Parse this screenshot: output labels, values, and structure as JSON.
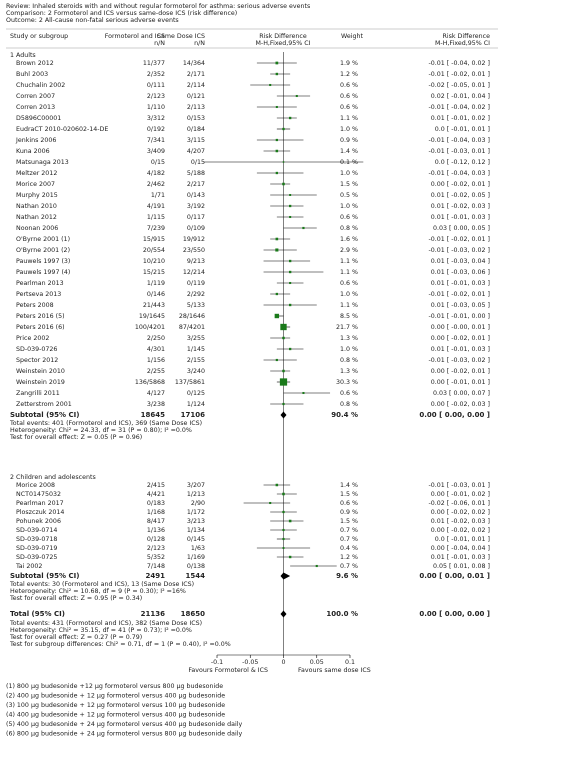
{
  "header": {
    "review": "Review:   Inhaled steroids with and without regular formoterol for asthma: serious adverse events",
    "comparison": "Comparison:   2 Formoterol and ICS versus same-dose ICS (risk difference)",
    "outcome": "Outcome:   2 All-cause non-fatal serious adverse events"
  },
  "columns": {
    "study": "Study or subgroup",
    "group1": "Formoterol and ICS",
    "group1_unit": "n/N",
    "group2": "Same Dose ICS",
    "group2_unit": "n/N",
    "plot": "Risk Difference",
    "plot_method": "M-H,Fixed,95% CI",
    "weight": "Weight",
    "effect": "Risk Difference",
    "effect_method": "M-H,Fixed,95% CI"
  },
  "chart_data": {
    "type": "forest",
    "xlim": [
      -0.1,
      0.1
    ],
    "xticks": [
      -0.1,
      -0.05,
      0,
      0.05,
      0.1
    ],
    "left_label": "Favours Formoterol & ICS",
    "right_label": "Favours same dose ICS",
    "color": "#1a7a1a",
    "groups": [
      {
        "title": "1 Adults",
        "rows": [
          {
            "study": "Brown 2012",
            "ft": "11/377",
            "sd": "14/364",
            "weight": 1.9,
            "weight_label": "1.9 %",
            "est": -0.01,
            "lo": -0.04,
            "hi": 0.02,
            "ci_label": "-0.01 [ -0.04, 0.02 ]"
          },
          {
            "study": "Buhl 2003",
            "ft": "2/352",
            "sd": "2/171",
            "weight": 1.2,
            "weight_label": "1.2 %",
            "est": -0.01,
            "lo": -0.02,
            "hi": 0.01,
            "ci_label": "-0.01 [ -0.02, 0.01 ]"
          },
          {
            "study": "Chuchalin 2002",
            "ft": "0/111",
            "sd": "2/114",
            "weight": 0.6,
            "weight_label": "0.6 %",
            "est": -0.02,
            "lo": -0.05,
            "hi": 0.01,
            "ci_label": "-0.02 [ -0.05, 0.01 ]"
          },
          {
            "study": "Corren 2007",
            "ft": "2/123",
            "sd": "0/121",
            "weight": 0.6,
            "weight_label": "0.6 %",
            "est": 0.02,
            "lo": -0.01,
            "hi": 0.04,
            "ci_label": "0.02 [ -0.01, 0.04 ]"
          },
          {
            "study": "Corren 2013",
            "ft": "1/110",
            "sd": "2/113",
            "weight": 0.6,
            "weight_label": "0.6 %",
            "est": -0.01,
            "lo": -0.04,
            "hi": 0.02,
            "ci_label": "-0.01 [ -0.04, 0.02 ]"
          },
          {
            "study": "D5896C00001",
            "ft": "3/312",
            "sd": "0/153",
            "weight": 1.1,
            "weight_label": "1.1 %",
            "est": 0.01,
            "lo": -0.01,
            "hi": 0.02,
            "ci_label": "0.01 [ -0.01, 0.02 ]"
          },
          {
            "study": "EudraCT 2010-020602-14-DE",
            "ft": "0/192",
            "sd": "0/184",
            "weight": 1.0,
            "weight_label": "1.0 %",
            "est": 0,
            "lo": -0.01,
            "hi": 0.01,
            "ci_label": "0.0 [ -0.01, 0.01 ]"
          },
          {
            "study": "Jenkins 2006",
            "ft": "7/341",
            "sd": "3/115",
            "weight": 0.9,
            "weight_label": "0.9 %",
            "est": -0.01,
            "lo": -0.04,
            "hi": 0.03,
            "ci_label": "-0.01 [ -0.04, 0.03 ]"
          },
          {
            "study": "Kuna 2006",
            "ft": "3/409",
            "sd": "4/207",
            "weight": 1.4,
            "weight_label": "1.4 %",
            "est": -0.01,
            "lo": -0.03,
            "hi": 0.01,
            "ci_label": "-0.01 [ -0.03, 0.01 ]"
          },
          {
            "study": "Matsunaga 2013",
            "ft": "0/15",
            "sd": "0/15",
            "weight": 0.1,
            "weight_label": "0.1 %",
            "est": 0,
            "lo": -0.12,
            "hi": 0.12,
            "ci_label": "0.0 [ -0.12, 0.12 ]"
          },
          {
            "study": "Meltzer 2012",
            "ft": "4/182",
            "sd": "5/188",
            "weight": 1.0,
            "weight_label": "1.0 %",
            "est": -0.01,
            "lo": -0.04,
            "hi": 0.03,
            "ci_label": "-0.01 [ -0.04, 0.03 ]"
          },
          {
            "study": "Morice 2007",
            "ft": "2/462",
            "sd": "2/217",
            "weight": 1.5,
            "weight_label": "1.5 %",
            "est": 0,
            "lo": -0.02,
            "hi": 0.01,
            "ci_label": "0.00 [ -0.02, 0.01 ]"
          },
          {
            "study": "Murphy 2015",
            "ft": "1/71",
            "sd": "0/143",
            "weight": 0.5,
            "weight_label": "0.5 %",
            "est": 0.01,
            "lo": -0.02,
            "hi": 0.05,
            "ci_label": "0.01 [ -0.02, 0.05 ]"
          },
          {
            "study": "Nathan 2010",
            "ft": "4/191",
            "sd": "3/192",
            "weight": 1.0,
            "weight_label": "1.0 %",
            "est": 0.01,
            "lo": -0.02,
            "hi": 0.03,
            "ci_label": "0.01 [ -0.02, 0.03 ]"
          },
          {
            "study": "Nathan 2012",
            "ft": "1/115",
            "sd": "0/117",
            "weight": 0.6,
            "weight_label": "0.6 %",
            "est": 0.01,
            "lo": -0.01,
            "hi": 0.03,
            "ci_label": "0.01 [ -0.01, 0.03 ]"
          },
          {
            "study": "Noonan 2006",
            "ft": "7/239",
            "sd": "0/109",
            "weight": 0.8,
            "weight_label": "0.8 %",
            "est": 0.03,
            "lo": 0,
            "hi": 0.05,
            "ci_label": "0.03 [ 0.00, 0.05 ]"
          },
          {
            "study": "O'Byrne 2001 (1)",
            "ft": "15/915",
            "sd": "19/912",
            "weight": 1.6,
            "weight_label": "1.6 %",
            "est": -0.01,
            "lo": -0.02,
            "hi": 0.01,
            "ci_label": "-0.01 [ -0.02, 0.01 ]"
          },
          {
            "study": "O'Byrne 2001 (2)",
            "ft": "20/554",
            "sd": "23/550",
            "weight": 2.9,
            "weight_label": "2.9 %",
            "est": -0.01,
            "lo": -0.03,
            "hi": 0.02,
            "ci_label": "-0.01 [ -0.03, 0.02 ]"
          },
          {
            "study": "Pauwels 1997 (3)",
            "ft": "10/210",
            "sd": "9/213",
            "weight": 1.1,
            "weight_label": "1.1 %",
            "est": 0.01,
            "lo": -0.03,
            "hi": 0.04,
            "ci_label": "0.01 [ -0.03, 0.04 ]"
          },
          {
            "study": "Pauwels 1997 (4)",
            "ft": "15/215",
            "sd": "12/214",
            "weight": 1.1,
            "weight_label": "1.1 %",
            "est": 0.01,
            "lo": -0.03,
            "hi": 0.06,
            "ci_label": "0.01 [ -0.03, 0.06 ]"
          },
          {
            "study": "Pearlman 2013",
            "ft": "1/119",
            "sd": "0/119",
            "weight": 0.6,
            "weight_label": "0.6 %",
            "est": 0.01,
            "lo": -0.01,
            "hi": 0.03,
            "ci_label": "0.01 [ -0.01, 0.03 ]"
          },
          {
            "study": "Pertseva 2013",
            "ft": "0/146",
            "sd": "2/292",
            "weight": 1.0,
            "weight_label": "1.0 %",
            "est": -0.01,
            "lo": -0.02,
            "hi": 0.01,
            "ci_label": "-0.01 [ -0.02, 0.01 ]"
          },
          {
            "study": "Peters 2008",
            "ft": "21/443",
            "sd": "5/133",
            "weight": 1.1,
            "weight_label": "1.1 %",
            "est": 0.01,
            "lo": -0.03,
            "hi": 0.05,
            "ci_label": "0.01 [ -0.03, 0.05 ]"
          },
          {
            "study": "Peters 2016 (5)",
            "ft": "19/1645",
            "sd": "28/1646",
            "weight": 8.5,
            "weight_label": "8.5 %",
            "est": -0.01,
            "lo": -0.01,
            "hi": 0,
            "ci_label": "-0.01 [ -0.01, 0.00 ]"
          },
          {
            "study": "Peters 2016 (6)",
            "ft": "100/4201",
            "sd": "87/4201",
            "weight": 21.7,
            "weight_label": "21.7 %",
            "est": 0,
            "lo": 0,
            "hi": 0.01,
            "ci_label": "0.00 [ -0.00, 0.01 ]"
          },
          {
            "study": "Price 2002",
            "ft": "2/250",
            "sd": "3/255",
            "weight": 1.3,
            "weight_label": "1.3 %",
            "est": 0,
            "lo": -0.02,
            "hi": 0.01,
            "ci_label": "0.00 [ -0.02, 0.01 ]"
          },
          {
            "study": "SD-039-0726",
            "ft": "4/301",
            "sd": "1/145",
            "weight": 1.0,
            "weight_label": "1.0 %",
            "est": 0.01,
            "lo": -0.01,
            "hi": 0.03,
            "ci_label": "0.01 [ -0.01, 0.03 ]"
          },
          {
            "study": "Spector 2012",
            "ft": "1/156",
            "sd": "2/155",
            "weight": 0.8,
            "weight_label": "0.8 %",
            "est": -0.01,
            "lo": -0.03,
            "hi": 0.02,
            "ci_label": "-0.01 [ -0.03, 0.02 ]"
          },
          {
            "study": "Weinstein 2010",
            "ft": "2/255",
            "sd": "3/240",
            "weight": 1.3,
            "weight_label": "1.3 %",
            "est": 0,
            "lo": -0.02,
            "hi": 0.01,
            "ci_label": "0.00 [ -0.02, 0.01 ]"
          },
          {
            "study": "Weinstein 2019",
            "ft": "136/5868",
            "sd": "137/5861",
            "weight": 30.3,
            "weight_label": "30.3 %",
            "est": 0,
            "lo": -0.01,
            "hi": 0.01,
            "ci_label": "0.00 [ -0.01, 0.01 ]"
          },
          {
            "study": "Zangrilli 2011",
            "ft": "4/127",
            "sd": "0/125",
            "weight": 0.6,
            "weight_label": "0.6 %",
            "est": 0.03,
            "lo": 0,
            "hi": 0.07,
            "ci_label": "0.03 [ 0.00, 0.07 ]"
          },
          {
            "study": "Zetterstrom 2001",
            "ft": "3/238",
            "sd": "1/124",
            "weight": 0.8,
            "weight_label": "0.8 %",
            "est": 0,
            "lo": -0.02,
            "hi": 0.03,
            "ci_label": "0.00 [ -0.02, 0.03 ]"
          }
        ],
        "subtotal": {
          "label": "Subtotal (95% CI)",
          "ft": 18645,
          "sd": 17106,
          "weight_label": "90.4 %",
          "est": 0,
          "lo": 0,
          "hi": 0,
          "ci_label": "0.00 [ 0.00, 0.00 ]"
        },
        "notes": [
          "Total events: 401 (Formoterol and ICS), 369 (Same Dose ICS)",
          "Heterogeneity: Chi² = 24.33, df = 31 (P = 0.80); I² =0.0%",
          "Test for overall effect: Z = 0.05 (P = 0.96)"
        ]
      },
      {
        "title": "2 Children and adolescents",
        "rows": [
          {
            "study": "Morice 2008",
            "ft": "2/415",
            "sd": "3/207",
            "weight": 1.4,
            "weight_label": "1.4 %",
            "est": -0.01,
            "lo": -0.03,
            "hi": 0.01,
            "ci_label": "-0.01 [ -0.03, 0.01 ]"
          },
          {
            "study": "NCT01475032",
            "ft": "4/421",
            "sd": "1/213",
            "weight": 1.5,
            "weight_label": "1.5 %",
            "est": 0,
            "lo": -0.01,
            "hi": 0.02,
            "ci_label": "0.00 [ -0.01, 0.02 ]"
          },
          {
            "study": "Pearlman 2017",
            "ft": "0/183",
            "sd": "2/90",
            "weight": 0.6,
            "weight_label": "0.6 %",
            "est": -0.02,
            "lo": -0.06,
            "hi": 0.01,
            "ci_label": "-0.02 [ -0.06, 0.01 ]"
          },
          {
            "study": "Ploszczuk 2014",
            "ft": "1/168",
            "sd": "1/172",
            "weight": 0.9,
            "weight_label": "0.9 %",
            "est": 0,
            "lo": -0.02,
            "hi": 0.02,
            "ci_label": "0.00 [ -0.02, 0.02 ]"
          },
          {
            "study": "Pohunek 2006",
            "ft": "8/417",
            "sd": "3/213",
            "weight": 1.5,
            "weight_label": "1.5 %",
            "est": 0.01,
            "lo": -0.02,
            "hi": 0.03,
            "ci_label": "0.01 [ -0.02, 0.03 ]"
          },
          {
            "study": "SD-039-0714",
            "ft": "1/136",
            "sd": "1/134",
            "weight": 0.7,
            "weight_label": "0.7 %",
            "est": 0,
            "lo": -0.02,
            "hi": 0.02,
            "ci_label": "0.00 [ -0.02, 0.02 ]"
          },
          {
            "study": "SD-039-0718",
            "ft": "0/128",
            "sd": "0/145",
            "weight": 0.7,
            "weight_label": "0.7 %",
            "est": 0,
            "lo": -0.01,
            "hi": 0.01,
            "ci_label": "0.0 [ -0.01, 0.01 ]"
          },
          {
            "study": "SD-039-0719",
            "ft": "2/123",
            "sd": "1/63",
            "weight": 0.4,
            "weight_label": "0.4 %",
            "est": 0,
            "lo": -0.04,
            "hi": 0.04,
            "ci_label": "0.00 [ -0.04, 0.04 ]"
          },
          {
            "study": "SD-039-0725",
            "ft": "5/352",
            "sd": "1/169",
            "weight": 1.2,
            "weight_label": "1.2 %",
            "est": 0.01,
            "lo": -0.01,
            "hi": 0.03,
            "ci_label": "0.01 [ -0.01, 0.03 ]"
          },
          {
            "study": "Tai 2002",
            "ft": "7/148",
            "sd": "0/138",
            "weight": 0.7,
            "weight_label": "0.7 %",
            "est": 0.05,
            "lo": 0.01,
            "hi": 0.08,
            "ci_label": "0.05 [ 0.01, 0.08 ]"
          }
        ],
        "subtotal": {
          "label": "Subtotal (95% CI)",
          "ft": 2491,
          "sd": 1544,
          "weight_label": "9.6 %",
          "est": 0,
          "lo": 0,
          "hi": 0.01,
          "ci_label": "0.00 [ 0.00, 0.01 ]"
        },
        "notes": [
          "Total events: 30 (Formoterol and ICS), 13 (Same Dose ICS)",
          "Heterogeneity: Chi² = 10.68, df = 9 (P = 0.30); I² =16%",
          "Test for overall effect: Z = 0.95 (P = 0.34)"
        ]
      }
    ],
    "total": {
      "label": "Total (95% CI)",
      "ft": 21136,
      "sd": 18650,
      "weight_label": "100.0 %",
      "est": 0,
      "lo": 0,
      "hi": 0,
      "ci_label": "0.00 [ 0.00, 0.00 ]"
    },
    "total_notes": [
      "Total events: 431 (Formoterol and ICS), 382 (Same Dose ICS)",
      "Heterogeneity: Chi² = 35.15, df = 41 (P = 0.73); I² =0.0%",
      "Test for overall effect: Z = 0.27 (P = 0.79)",
      "Test for subgroup differences: Chi² = 0.71, df = 1 (P = 0.40), I² =0.0%"
    ]
  },
  "footnotes": [
    "(1) 800 µg budesonide +12 µg formoterol versus 800 µg budesonide",
    "(2) 400 µg budesonide + 12 µg formoterol versus 400 µg budesonide",
    "(3) 100 µg budesonide + 12 µg formoterol versus 100 µg budesonide",
    "(4) 400 µg budesonide + 12 µg formoterol versus 400 µg budesonide",
    "(5) 400 µg budesonide + 24 µg formoterol versus 400 µg budesonide daily",
    "(6) 800 µg budesonide + 24 µg formoterol versus 800 µg budesonide daily"
  ]
}
